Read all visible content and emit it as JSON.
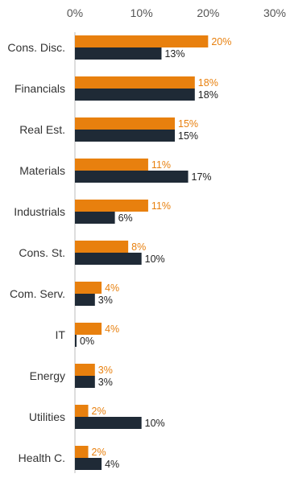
{
  "chart_data": {
    "type": "bar",
    "orientation": "horizontal",
    "title": "",
    "xlabel": "",
    "ylabel": "",
    "xlim": [
      0,
      30
    ],
    "x_ticks": [
      0,
      10,
      20,
      30
    ],
    "tick_format": "{v}%",
    "grid": false,
    "legend": "none",
    "categories": [
      "Cons. Disc.",
      "Financials",
      "Real Est.",
      "Materials",
      "Industrials",
      "Cons. St.",
      "Com. Serv.",
      "IT",
      "Energy",
      "Utilities",
      "Health C."
    ],
    "series": [
      {
        "color": "#E8800E",
        "values": [
          20,
          18,
          15,
          11,
          11,
          8,
          4,
          4,
          3,
          2,
          2
        ],
        "labels": [
          "20%",
          "18%",
          "15%",
          "11%",
          "11%",
          "8%",
          "4%",
          "4%",
          "3%",
          "2%",
          "2%"
        ]
      },
      {
        "color": "#1F2A36",
        "values": [
          13,
          18,
          15,
          17,
          6,
          10,
          3,
          0,
          3,
          10,
          4
        ],
        "labels": [
          "13%",
          "18%",
          "15%",
          "17%",
          "6%",
          "10%",
          "3%",
          "0%",
          "3%",
          "10%",
          "4%"
        ]
      }
    ],
    "colors": {
      "tick_text": "#555555",
      "category_text": "#333333",
      "axis_line": "#bbbbbb",
      "label_series_0": "#E8800E",
      "label_series_1": "#222222"
    }
  }
}
